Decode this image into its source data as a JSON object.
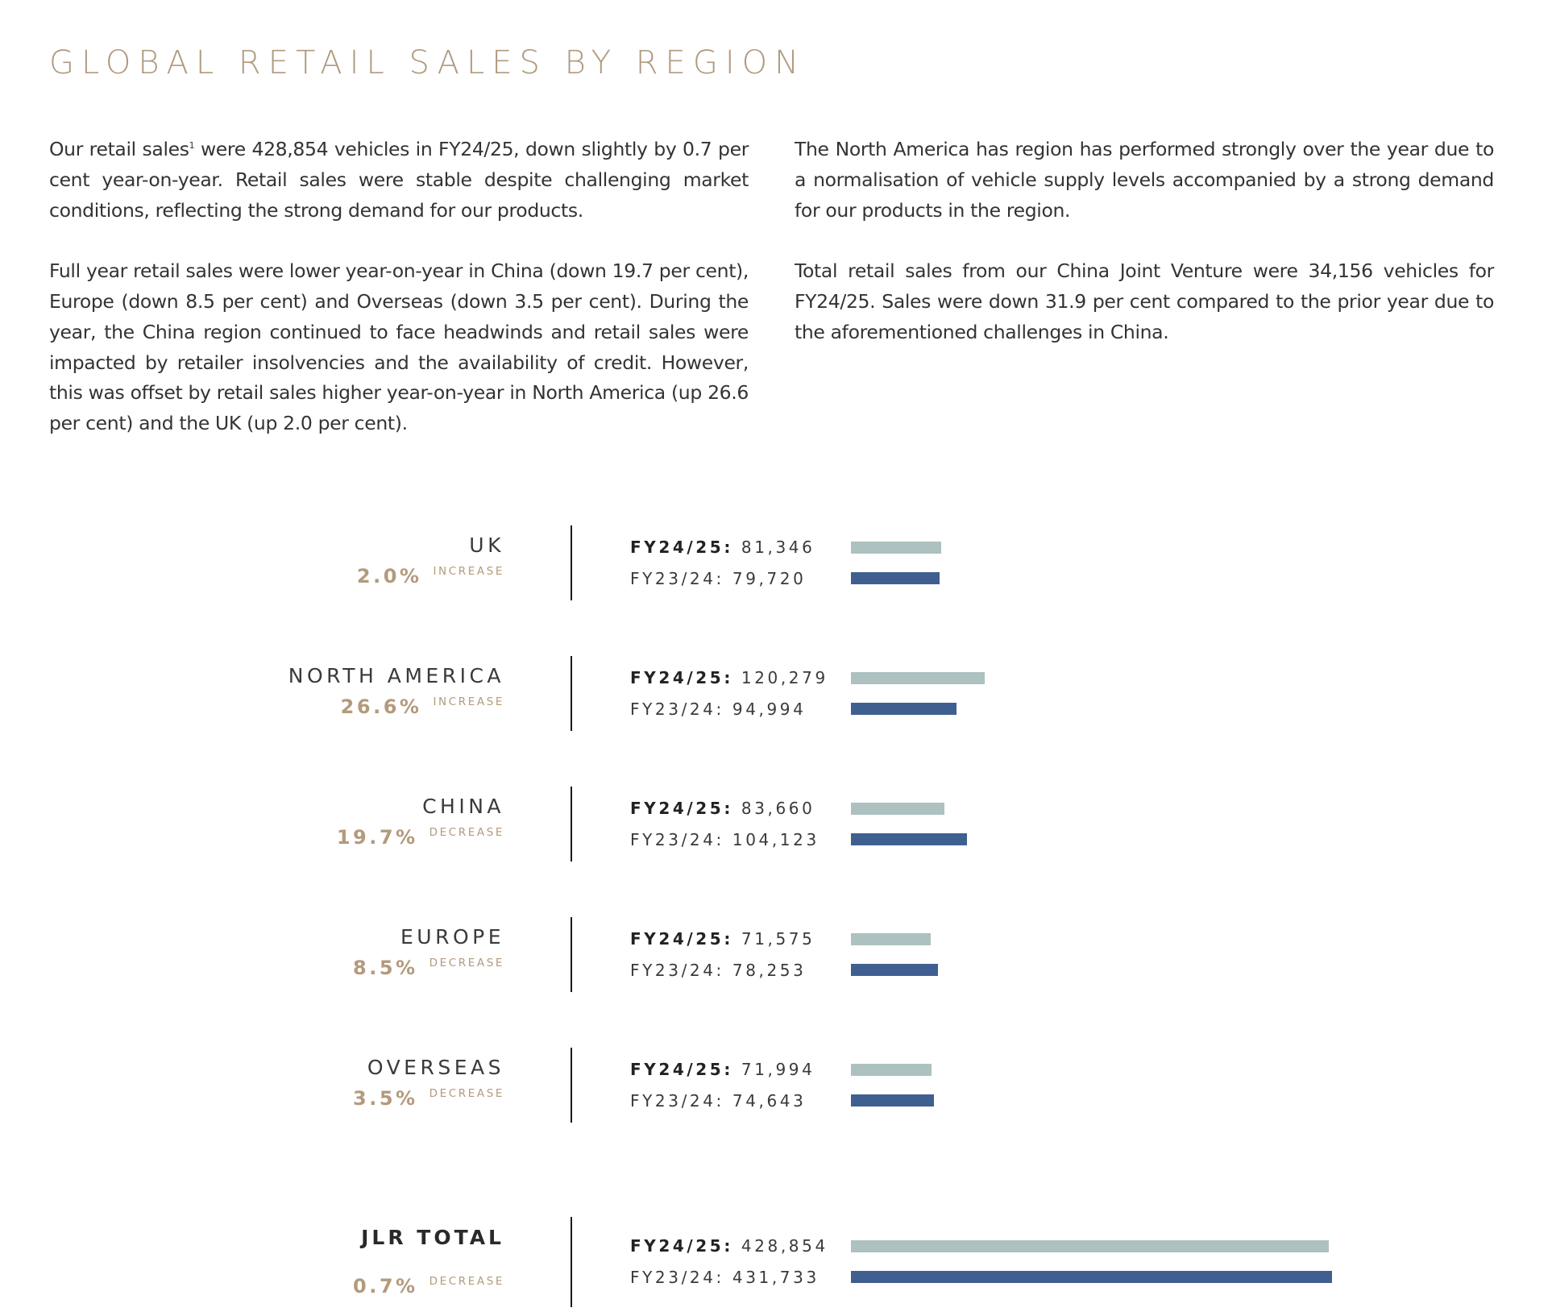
{
  "title": "GLOBAL RETAIL SALES BY REGION",
  "intro": {
    "left": {
      "p1_a": "Our retail sales",
      "p1_sup": "1",
      "p1_b": " were 428,854 vehicles in FY24/25, down slightly by 0.7 per cent year-on-year. Retail sales were stable despite challenging market conditions, reflecting the strong demand for our products.",
      "p2": "Full year retail sales were lower year-on-year in China (down 19.7 per cent), Europe (down 8.5 per cent) and Overseas (down 3.5 per cent). During the year, the China region continued to face headwinds and retail sales were impacted by retailer insolvencies and the availability of credit. However, this was offset by retail sales higher year-on-year in North America (up 26.6 per cent) and the UK (up 2.0 per cent)."
    },
    "right": {
      "p1": "The North America has region has performed strongly over the year due to a normalisation of vehicle supply levels accompanied by a strong demand for our products in the region.",
      "p2": "Total retail sales from our China Joint Venture were 34,156 vehicles for FY24/25. Sales were down 31.9 per cent compared to the prior year due to the aforementioned challenges in China."
    }
  },
  "chart_data": {
    "type": "bar",
    "orientation": "horizontal",
    "series_labels": {
      "current": "FY24/25:",
      "previous": "FY23/24:"
    },
    "colors": {
      "current": "#acc1c0",
      "previous": "#3f5f90"
    },
    "regions": [
      {
        "name": "UK",
        "change": "2.0%",
        "direction": "INCREASE",
        "current_text": "81,346",
        "previous_text": "79,720",
        "current": 81346,
        "previous": 79720
      },
      {
        "name": "NORTH AMERICA",
        "change": "26.6%",
        "direction": "INCREASE",
        "current_text": "120,279",
        "previous_text": "94,994",
        "current": 120279,
        "previous": 94994
      },
      {
        "name": "CHINA",
        "change": "19.7%",
        "direction": "DECREASE",
        "current_text": "83,660",
        "previous_text": "104,123",
        "current": 83660,
        "previous": 104123
      },
      {
        "name": "EUROPE",
        "change": "8.5%",
        "direction": "DECREASE",
        "current_text": "71,575",
        "previous_text": "78,253",
        "current": 71575,
        "previous": 78253
      },
      {
        "name": "OVERSEAS",
        "change": "3.5%",
        "direction": "DECREASE",
        "current_text": "71,994",
        "previous_text": "74,643",
        "current": 71994,
        "previous": 74643
      },
      {
        "name": "JLR TOTAL",
        "change": "0.7%",
        "direction": "DECREASE",
        "current_text": "428,854",
        "previous_text": "431,733",
        "current": 428854,
        "previous": 431733,
        "total": true
      }
    ]
  }
}
